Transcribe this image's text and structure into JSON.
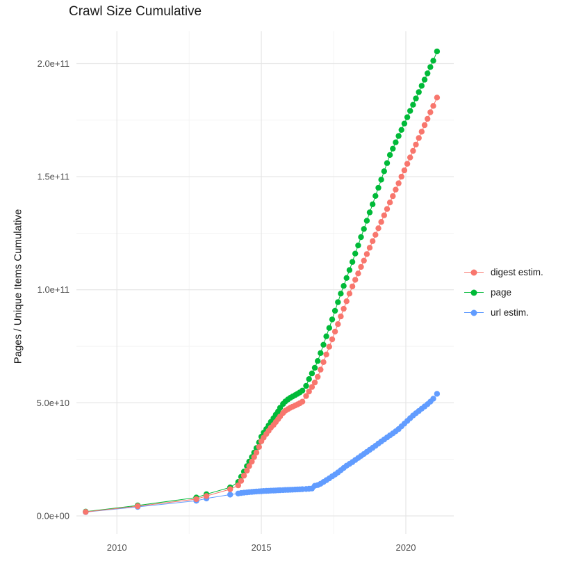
{
  "chart_data": {
    "type": "scatter",
    "title": "Crawl Size Cumulative",
    "xlabel": "",
    "ylabel": "Pages / Unique Items Cumulative",
    "grid": true,
    "legend_position": "right",
    "value_unit": 1000000000.0,
    "x_range": [
      2008.6,
      2021.66
    ],
    "y_range_e9": [
      -8,
      214.3
    ],
    "x_axis": {
      "ticks": [
        {
          "label": "2010",
          "v": 2010
        },
        {
          "label": "2015",
          "v": 2015
        },
        {
          "label": "2020",
          "v": 2020
        }
      ],
      "minor": [
        2012.5,
        2017.5
      ]
    },
    "y_axis": {
      "ticks": [
        {
          "label": "0.0e+00",
          "v": 0
        },
        {
          "label": "5.0e+10",
          "v": 50
        },
        {
          "label": "1.0e+11",
          "v": 100
        },
        {
          "label": "1.5e+11",
          "v": 150
        },
        {
          "label": "2.0e+11",
          "v": 200
        }
      ],
      "minor": [
        25,
        75,
        125,
        175
      ]
    },
    "x_years": [
      2008.92,
      2010.72,
      2012.75,
      2013.1,
      2013.92,
      2014.2,
      2014.3,
      2014.4,
      2014.5,
      2014.58,
      2014.67,
      2014.75,
      2014.83,
      2014.92,
      2015.0,
      2015.08,
      2015.17,
      2015.25,
      2015.33,
      2015.42,
      2015.5,
      2015.58,
      2015.65,
      2015.75,
      2015.83,
      2015.92,
      2016.0,
      2016.08,
      2016.17,
      2016.25,
      2016.33,
      2016.42,
      2016.55,
      2016.65,
      2016.75,
      2016.85,
      2016.95,
      2017.05,
      2017.15,
      2017.25,
      2017.35,
      2017.45,
      2017.55,
      2017.65,
      2017.75,
      2017.85,
      2017.95,
      2018.05,
      2018.15,
      2018.25,
      2018.35,
      2018.45,
      2018.55,
      2018.65,
      2018.75,
      2018.85,
      2018.95,
      2019.05,
      2019.15,
      2019.25,
      2019.35,
      2019.45,
      2019.55,
      2019.65,
      2019.75,
      2019.85,
      2019.95,
      2020.05,
      2020.15,
      2020.25,
      2020.35,
      2020.45,
      2020.55,
      2020.65,
      2020.75,
      2020.85,
      2020.95,
      2021.08
    ],
    "draw_order": [
      "page",
      "url estim.",
      "digest estim."
    ],
    "series": [
      {
        "name": "digest estim.",
        "color": "#F8766D",
        "values_e9": [
          1.75,
          4.3,
          7.4,
          8.8,
          11.8,
          13.5,
          15.5,
          17.8,
          20,
          22,
          24,
          26,
          28,
          30.5,
          33,
          34.6,
          36.2,
          37.6,
          39,
          40.2,
          41.5,
          42.8,
          44,
          45.5,
          46.5,
          47.2,
          47.8,
          48.3,
          48.8,
          49.3,
          49.8,
          50.5,
          53,
          55,
          57,
          59,
          61.5,
          64.7,
          68,
          71.4,
          74.8,
          78.1,
          81.5,
          84.8,
          88.2,
          91.6,
          94.9,
          98.3,
          101.5,
          104.4,
          107.2,
          110.1,
          112.9,
          115.8,
          118.6,
          121.5,
          124.3,
          127.2,
          130,
          132.9,
          135.7,
          138.6,
          141.4,
          144.3,
          147.1,
          150,
          152.8,
          155.7,
          158.5,
          161.4,
          164.2,
          167.1,
          169.9,
          172.8,
          175.6,
          178.5,
          181.3,
          185
        ]
      },
      {
        "name": "page",
        "color": "#00BA38",
        "values_e9": [
          1.9,
          4.6,
          8.1,
          9.6,
          12.6,
          15,
          17.3,
          19.6,
          22,
          24,
          26,
          28,
          30,
          32.5,
          35,
          36.8,
          38.4,
          40,
          41.6,
          43.2,
          44.8,
          46.2,
          47.8,
          49.5,
          50.6,
          51.5,
          52.2,
          52.8,
          53.4,
          54,
          54.6,
          55.4,
          57.5,
          60.5,
          63,
          65.5,
          68.5,
          72,
          75.7,
          79.4,
          83.1,
          86.9,
          90.7,
          94.5,
          98.3,
          101.7,
          105.2,
          108.7,
          112.3,
          116,
          119.6,
          123.3,
          126.9,
          130.5,
          134.2,
          137.8,
          141.5,
          145.1,
          148.7,
          152.4,
          156,
          159.6,
          162.4,
          165.2,
          168,
          170.7,
          173.5,
          176.3,
          179.1,
          181.8,
          184.6,
          187.4,
          190.2,
          192.9,
          195.7,
          198.5,
          201.3,
          205.4
        ]
      },
      {
        "name": "url estim.",
        "color": "#619CFF",
        "values_e9": [
          1.7,
          4.0,
          6.7,
          7.7,
          9.4,
          9.9,
          10.1,
          10.25,
          10.4,
          10.5,
          10.6,
          10.7,
          10.8,
          10.85,
          10.9,
          11.0,
          11.05,
          11.1,
          11.15,
          11.2,
          11.25,
          11.3,
          11.35,
          11.4,
          11.45,
          11.5,
          11.55,
          11.6,
          11.65,
          11.7,
          11.75,
          11.8,
          11.9,
          12.0,
          12.1,
          13.3,
          13.6,
          14.2,
          15,
          15.8,
          16.6,
          17.5,
          18.3,
          19.2,
          20.2,
          21.2,
          22.2,
          23,
          23.8,
          24.7,
          25.6,
          26.5,
          27.4,
          28.3,
          29.2,
          30.1,
          31,
          32,
          32.9,
          33.8,
          34.7,
          35.6,
          36.5,
          37.4,
          38.4,
          39.6,
          40.8,
          42,
          43.2,
          44.4,
          45.4,
          46.4,
          47.4,
          48.4,
          49.4,
          50.5,
          51.8,
          54
        ]
      }
    ],
    "style": {
      "major_grid_color": "#e6e6e6",
      "minor_grid_color": "#f2f2f2",
      "tick_label_color": "#4d4d4d",
      "text_color": "#191919",
      "background": "#ffffff",
      "point_radius": 4.2
    }
  }
}
